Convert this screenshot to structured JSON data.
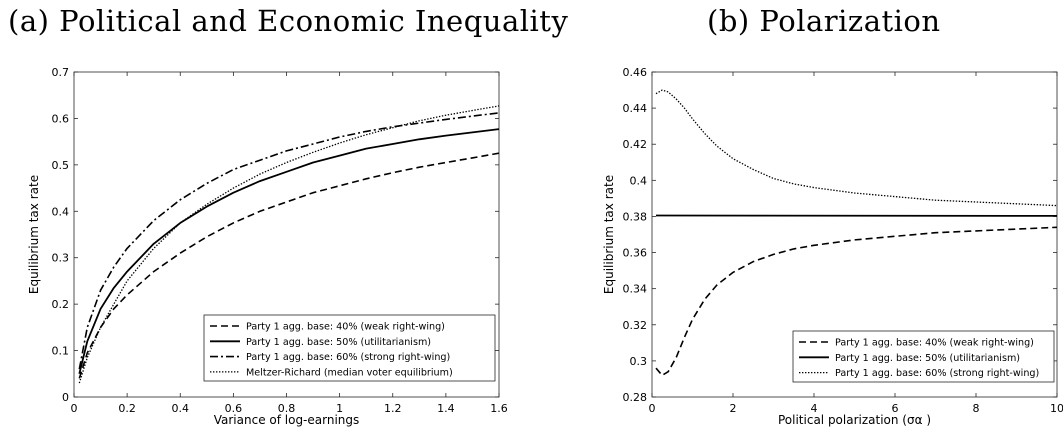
{
  "panels": {
    "a": {
      "title": "(a) Political and Economic Inequality"
    },
    "b": {
      "title": "(b) Polarization"
    }
  },
  "chart_data": [
    {
      "type": "line",
      "title": "(a) Political and Economic Inequality",
      "xlabel": "Variance of log-earnings",
      "ylabel": "Equilibrium tax rate",
      "xlim": [
        0,
        1.6
      ],
      "ylim": [
        0,
        0.7
      ],
      "xticks": [
        0,
        0.2,
        0.4,
        0.6,
        0.8,
        1,
        1.2,
        1.4,
        1.6
      ],
      "yticks": [
        0,
        0.1,
        0.2,
        0.3,
        0.4,
        0.5,
        0.6,
        0.7
      ],
      "xtick_labels": [
        "0",
        "0.2",
        "0.4",
        "0.6",
        "0.8",
        "1",
        "1.2",
        "1.4",
        "1.6"
      ],
      "ytick_labels": [
        "0",
        "0.1",
        "0.2",
        "0.3",
        "0.4",
        "0.5",
        "0.6",
        "0.7"
      ],
      "grid": false,
      "legend_position": "bottom-right",
      "series": [
        {
          "name": "Party 1 agg. base: 40% (weak right-wing)",
          "style": "dashed",
          "x": [
            0.02,
            0.05,
            0.1,
            0.15,
            0.2,
            0.3,
            0.4,
            0.5,
            0.6,
            0.7,
            0.8,
            0.9,
            1.0,
            1.1,
            1.2,
            1.3,
            1.4,
            1.5,
            1.6
          ],
          "y": [
            0.04,
            0.095,
            0.15,
            0.19,
            0.22,
            0.27,
            0.31,
            0.345,
            0.375,
            0.4,
            0.42,
            0.44,
            0.455,
            0.47,
            0.483,
            0.495,
            0.505,
            0.515,
            0.525
          ]
        },
        {
          "name": "Party 1 agg. base: 50% (utilitarianism)",
          "style": "solid",
          "x": [
            0.02,
            0.05,
            0.1,
            0.15,
            0.2,
            0.3,
            0.4,
            0.5,
            0.6,
            0.7,
            0.8,
            0.9,
            1.0,
            1.1,
            1.2,
            1.3,
            1.4,
            1.5,
            1.6
          ],
          "y": [
            0.05,
            0.12,
            0.19,
            0.235,
            0.27,
            0.33,
            0.375,
            0.41,
            0.44,
            0.465,
            0.485,
            0.505,
            0.52,
            0.535,
            0.545,
            0.555,
            0.563,
            0.57,
            0.577
          ]
        },
        {
          "name": "Party 1 agg. base: 60% (strong right-wing)",
          "style": "dashdot",
          "x": [
            0.02,
            0.05,
            0.1,
            0.15,
            0.2,
            0.3,
            0.4,
            0.5,
            0.6,
            0.7,
            0.8,
            0.9,
            1.0,
            1.1,
            1.2,
            1.3,
            1.4,
            1.5,
            1.6
          ],
          "y": [
            0.06,
            0.15,
            0.23,
            0.28,
            0.32,
            0.38,
            0.425,
            0.46,
            0.49,
            0.51,
            0.53,
            0.545,
            0.56,
            0.572,
            0.582,
            0.59,
            0.598,
            0.605,
            0.612
          ]
        },
        {
          "name": "Meltzer-Richard (median voter equilibrium)",
          "style": "dotted",
          "x": [
            0.02,
            0.05,
            0.1,
            0.15,
            0.2,
            0.3,
            0.4,
            0.5,
            0.6,
            0.7,
            0.8,
            0.9,
            1.0,
            1.1,
            1.2,
            1.3,
            1.4,
            1.5,
            1.6
          ],
          "y": [
            0.03,
            0.085,
            0.15,
            0.2,
            0.25,
            0.32,
            0.375,
            0.415,
            0.45,
            0.48,
            0.505,
            0.527,
            0.547,
            0.565,
            0.58,
            0.595,
            0.607,
            0.617,
            0.627
          ]
        }
      ]
    },
    {
      "type": "line",
      "title": "(b) Polarization",
      "xlabel": "Political polarization (σα )",
      "ylabel": "Equilibrium tax rate",
      "xlim": [
        0,
        10
      ],
      "ylim": [
        0.28,
        0.46
      ],
      "xticks": [
        0,
        2,
        4,
        6,
        8,
        10
      ],
      "yticks": [
        0.28,
        0.3,
        0.32,
        0.34,
        0.36,
        0.38,
        0.4,
        0.42,
        0.44,
        0.46
      ],
      "xtick_labels": [
        "0",
        "2",
        "4",
        "6",
        "8",
        "10"
      ],
      "ytick_labels": [
        "0.28",
        "0.3",
        "0.32",
        "0.34",
        "0.36",
        "0.38",
        "0.4",
        "0.42",
        "0.44",
        "0.46"
      ],
      "grid": false,
      "legend_position": "bottom-right",
      "series": [
        {
          "name": "Party 1 agg. base: 40% (weak right-wing)",
          "style": "dashed",
          "x": [
            0.1,
            0.25,
            0.4,
            0.6,
            0.8,
            1.0,
            1.3,
            1.6,
            2.0,
            2.5,
            3.0,
            3.5,
            4.0,
            5.0,
            6.0,
            7.0,
            8.0,
            9.0,
            10.0
          ],
          "y": [
            0.296,
            0.292,
            0.294,
            0.302,
            0.313,
            0.323,
            0.334,
            0.342,
            0.349,
            0.355,
            0.359,
            0.362,
            0.364,
            0.367,
            0.369,
            0.371,
            0.372,
            0.373,
            0.374
          ]
        },
        {
          "name": "Party 1 agg. base: 50% (utilitarianism)",
          "style": "solid",
          "x": [
            0.1,
            10.0
          ],
          "y": [
            0.3805,
            0.3803
          ]
        },
        {
          "name": "Party 1 agg. base: 60% (strong right-wing)",
          "style": "dotted",
          "x": [
            0.1,
            0.25,
            0.4,
            0.6,
            0.8,
            1.0,
            1.3,
            1.6,
            2.0,
            2.5,
            3.0,
            3.5,
            4.0,
            5.0,
            6.0,
            7.0,
            8.0,
            9.0,
            10.0
          ],
          "y": [
            0.448,
            0.45,
            0.449,
            0.445,
            0.44,
            0.434,
            0.426,
            0.419,
            0.412,
            0.406,
            0.401,
            0.398,
            0.396,
            0.393,
            0.391,
            0.389,
            0.388,
            0.387,
            0.386
          ]
        }
      ]
    }
  ]
}
